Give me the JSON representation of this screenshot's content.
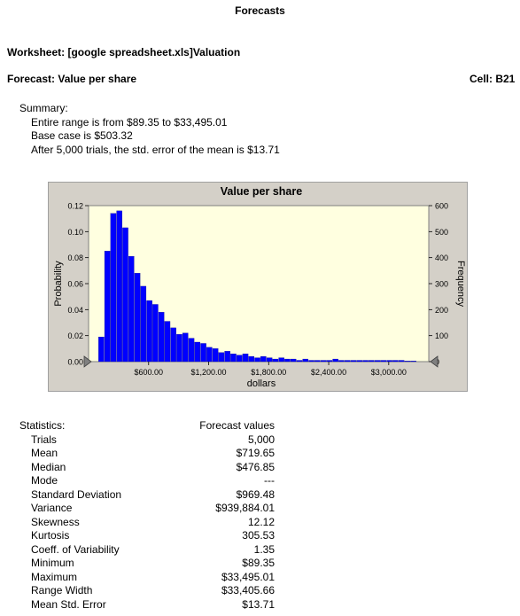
{
  "report": {
    "title": "Forecasts",
    "worksheet": "Worksheet: [google spreadsheet.xls]Valuation",
    "forecast": "Forecast: Value per share",
    "cell": "Cell: B21"
  },
  "summary": {
    "heading": "Summary:",
    "lines": [
      "Entire range is from $89.35  to $33,495.01",
      "Base case is $503.32",
      "After 5,000 trials, the std. error of the mean is $13.71"
    ]
  },
  "chart_data": {
    "type": "bar",
    "title": "Value per share",
    "xlabel": "dollars",
    "ylabel_left": "Probability",
    "ylabel_right": "Frequency",
    "ylim_left": [
      0,
      0.12
    ],
    "ylim_right": [
      0,
      600
    ],
    "xlim": [
      0,
      3400
    ],
    "y_ticks_left": [
      "0.12",
      "0.10",
      "0.08",
      "0.06",
      "0.04",
      "0.02",
      "0.00"
    ],
    "y_ticks_right": [
      "600",
      "500",
      "400",
      "300",
      "200",
      "100",
      "0"
    ],
    "x_ticks": [
      {
        "value": 600,
        "label": "$600.00"
      },
      {
        "value": 1200,
        "label": "$1,200.00"
      },
      {
        "value": 1800,
        "label": "$1,800.00"
      },
      {
        "value": 2400,
        "label": "$2,400.00"
      },
      {
        "value": 3000,
        "label": "$3,000.00"
      }
    ],
    "bin_start": 100,
    "bin_width": 60,
    "probabilities": [
      0.019,
      0.085,
      0.114,
      0.116,
      0.103,
      0.081,
      0.068,
      0.058,
      0.047,
      0.044,
      0.038,
      0.031,
      0.026,
      0.021,
      0.022,
      0.018,
      0.015,
      0.014,
      0.011,
      0.01,
      0.007,
      0.008,
      0.006,
      0.005,
      0.006,
      0.004,
      0.003,
      0.004,
      0.003,
      0.002,
      0.003,
      0.002,
      0.002,
      0.001,
      0.002,
      0.001,
      0.001,
      0.001,
      0.001,
      0.002,
      0.001,
      0.001,
      0.001,
      0.001,
      0.001,
      0.001,
      0.001,
      0.001,
      0.001,
      0.001,
      0.001,
      0.0005,
      0.0005
    ],
    "colors": {
      "bar": "#0000ff",
      "plot_bg": "#ffffe0",
      "frame_bg": "#d4d0c8"
    }
  },
  "statistics": {
    "header_label": "Statistics:",
    "header_value": "Forecast values",
    "rows": [
      {
        "label": "Trials",
        "value": "5,000"
      },
      {
        "label": "Mean",
        "value": "$719.65"
      },
      {
        "label": "Median",
        "value": "$476.85"
      },
      {
        "label": "Mode",
        "value": "---"
      },
      {
        "label": "Standard Deviation",
        "value": "$969.48"
      },
      {
        "label": "Variance",
        "value": "$939,884.01"
      },
      {
        "label": "Skewness",
        "value": "12.12"
      },
      {
        "label": "Kurtosis",
        "value": "305.53"
      },
      {
        "label": "Coeff. of Variability",
        "value": "1.35"
      },
      {
        "label": "Minimum",
        "value": "$89.35"
      },
      {
        "label": "Maximum",
        "value": "$33,495.01"
      },
      {
        "label": "Range Width",
        "value": "$33,405.66"
      },
      {
        "label": "Mean Std. Error",
        "value": "$13.71"
      }
    ]
  }
}
